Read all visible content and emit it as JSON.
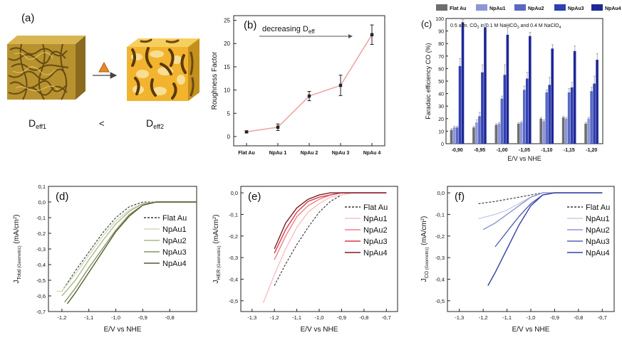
{
  "colors": {
    "flat": "#6e6e6e",
    "np1": "#8c96d8",
    "np2": "#5a68c4",
    "np3": "#2f3fb0",
    "np4": "#1f2796",
    "rough_line": "#f0a0a0",
    "total_flat": "#333333",
    "total_np": [
      "#cfdcb8",
      "#a9ba8a",
      "#86975f",
      "#545c30"
    ],
    "her_np": [
      "#f6c0c4",
      "#ee7e86",
      "#d83a48",
      "#7a1f26"
    ],
    "co_np": [
      "#c7cce8",
      "#8c96d0",
      "#5563b4",
      "#3443a0"
    ],
    "block_gold": "#c9a23a",
    "block_bright": "#f5c043"
  },
  "panel_a": {
    "label": "(a)",
    "d_left": "D",
    "d_left_sub": "eff1",
    "compare": "<",
    "d_right": "D",
    "d_right_sub": "eff2"
  },
  "chart_data": [
    {
      "id": "b",
      "type": "line",
      "panel_label": "(b)",
      "annotation": "decreasing D",
      "annotation_sub": "eff",
      "categories": [
        "Flat  Au",
        "NpAu 1",
        "NpAu 2",
        "NpAu 3",
        "NpAu 4"
      ],
      "values": [
        1.0,
        2.0,
        8.7,
        11.0,
        21.9
      ],
      "errors": [
        0.2,
        0.7,
        1.0,
        2.2,
        2.1
      ],
      "ylabel": "Roughness Factor",
      "ylim": [
        -2,
        26
      ],
      "yticks": [
        0,
        5,
        10,
        15,
        20,
        25
      ]
    },
    {
      "id": "c",
      "type": "bar",
      "panel_label": "(c)",
      "legend": [
        "Flat Au",
        "NpAu1",
        "NpAu2",
        "NpAu3",
        "NpAu4"
      ],
      "note": "0.5 atm. CO",
      "note_sub1": "2",
      "note_mid": " in 0.1 M NaHCO",
      "note_sub2": "3",
      "note_end": " and 0.4 M NaClO",
      "note_sub3": "4",
      "categories": [
        "-0,90",
        "-0,95",
        "-1,00",
        "-1,05",
        "-1,10",
        "-1,15",
        "-1,20"
      ],
      "series": [
        {
          "name": "Flat Au",
          "values": [
            11,
            13,
            15,
            16,
            20,
            21,
            16
          ]
        },
        {
          "name": "NpAu1",
          "values": [
            13,
            17,
            16,
            17,
            18,
            20,
            20
          ]
        },
        {
          "name": "NpAu2",
          "values": [
            13,
            22,
            36,
            43,
            41,
            41,
            42
          ]
        },
        {
          "name": "NpAu3",
          "values": [
            62,
            57,
            55,
            52,
            47,
            45,
            48
          ]
        },
        {
          "name": "NpAu4",
          "values": [
            97,
            93,
            87,
            86,
            76,
            74,
            67
          ]
        }
      ],
      "errors": [
        [
          1,
          1,
          1,
          1,
          1,
          1,
          1
        ],
        [
          1,
          2,
          1,
          1,
          1,
          1,
          1
        ],
        [
          1,
          3,
          2,
          3,
          2,
          3,
          3
        ],
        [
          6,
          6,
          8,
          5,
          6,
          4,
          6
        ],
        [
          2,
          3,
          6,
          3,
          3,
          4,
          5
        ]
      ],
      "xlabel": "E/V vs NHE",
      "ylabel": "Faradaic efficiency CO (%)",
      "ylim": [
        0,
        100
      ],
      "yticks": [
        0,
        10,
        20,
        30,
        40,
        50,
        60,
        70,
        80,
        90,
        100
      ]
    },
    {
      "id": "d",
      "type": "line",
      "panel_label": "(d)",
      "ylabel_main": "J",
      "ylabel_sub": "Total",
      "ylabel_small": " (Geometric)",
      "ylabel_unit": " (mA/cm",
      "ylabel_sup": "2",
      "ylabel_close": ")",
      "xlabel": "E/V vs NHE",
      "xlim": [
        -1.25,
        -0.7
      ],
      "ylim": [
        -0.7,
        0.1
      ],
      "xticks": [
        -1.2,
        -1.1,
        -1.0,
        -0.9,
        -0.8
      ],
      "xticklabels": [
        "-1,2",
        "-1,1",
        "-1,0",
        "-0,9",
        "-0,8"
      ],
      "yticks": [
        0.1,
        0.0,
        -0.1,
        -0.2,
        -0.3,
        -0.4,
        -0.5,
        -0.6,
        -0.7
      ],
      "yticklabels": [
        "0,1",
        "0,0",
        "-0,1",
        "-0,2",
        "-0,3",
        "-0,4",
        "-0,5",
        "-0,6",
        "-0,7"
      ],
      "series": [
        {
          "name": "Flat Au",
          "dashed": true,
          "x": [
            -1.2,
            -1.15,
            -1.1,
            -1.05,
            -1.0,
            -0.95,
            -0.9,
            -0.85,
            -0.8,
            -0.7
          ],
          "y": [
            -0.57,
            -0.44,
            -0.32,
            -0.2,
            -0.1,
            -0.03,
            0.0,
            0.0,
            0.0,
            0.0
          ]
        },
        {
          "name": "NpAu1",
          "x": [
            -1.22,
            -1.2,
            -1.15,
            -1.1,
            -1.05,
            -1.0,
            -0.95,
            -0.9,
            -0.85,
            -0.8,
            -0.7
          ],
          "y": [
            -0.57,
            -0.57,
            -0.46,
            -0.34,
            -0.22,
            -0.12,
            -0.05,
            -0.01,
            0.0,
            0.0,
            0.0
          ]
        },
        {
          "name": "NpAu2",
          "x": [
            -1.2,
            -1.15,
            -1.1,
            -1.05,
            -1.0,
            -0.95,
            -0.9,
            -0.85,
            -0.8,
            -0.7
          ],
          "y": [
            -0.6,
            -0.5,
            -0.37,
            -0.25,
            -0.14,
            -0.06,
            -0.01,
            0.0,
            0.0,
            0.0
          ]
        },
        {
          "name": "NpAu3",
          "x": [
            -1.19,
            -1.15,
            -1.1,
            -1.05,
            -1.0,
            -0.95,
            -0.9,
            -0.85,
            -0.8,
            -0.7
          ],
          "y": [
            -0.64,
            -0.55,
            -0.42,
            -0.3,
            -0.18,
            -0.08,
            -0.02,
            0.0,
            0.0,
            0.0
          ]
        },
        {
          "name": "NpAu4",
          "x": [
            -1.18,
            -1.15,
            -1.1,
            -1.05,
            -1.0,
            -0.95,
            -0.9,
            -0.85,
            -0.8,
            -0.7
          ],
          "y": [
            -0.65,
            -0.58,
            -0.45,
            -0.32,
            -0.19,
            -0.09,
            -0.02,
            0.0,
            0.0,
            0.0
          ]
        }
      ]
    },
    {
      "id": "e",
      "type": "line",
      "panel_label": "(e)",
      "ylabel_main": "J",
      "ylabel_sub": "HER",
      "ylabel_small": " (Geometric)",
      "ylabel_unit": " (mA/cm",
      "ylabel_sup": "2",
      "ylabel_close": ")",
      "xlabel": "E/V vs NHE",
      "xlim": [
        -1.35,
        -0.65
      ],
      "ylim": [
        -0.55,
        0.03
      ],
      "xticks": [
        -1.3,
        -1.2,
        -1.1,
        -1.0,
        -0.9,
        -0.8,
        -0.7
      ],
      "xticklabels": [
        "-1,3",
        "-1,2",
        "-1,1",
        "-1,0",
        "-0,9",
        "-0,8",
        "-0,7"
      ],
      "yticks": [
        0.0,
        -0.1,
        -0.2,
        -0.3,
        -0.4,
        -0.5
      ],
      "yticklabels": [
        "0,0",
        "-0,1",
        "-0,2",
        "-0,3",
        "-0,4",
        "-0,5"
      ],
      "series": [
        {
          "name": "Flat Au",
          "dashed": true,
          "x": [
            -1.2,
            -1.15,
            -1.1,
            -1.05,
            -1.0,
            -0.95,
            -0.9,
            -0.85,
            -0.8,
            -0.7
          ],
          "y": [
            -0.43,
            -0.33,
            -0.24,
            -0.16,
            -0.09,
            -0.04,
            -0.01,
            0.0,
            0.0,
            0.0
          ]
        },
        {
          "name": "NpAu1",
          "x": [
            -1.25,
            -1.2,
            -1.15,
            -1.1,
            -1.05,
            -1.0,
            -0.95,
            -0.9,
            -0.85,
            -0.8,
            -0.7
          ],
          "y": [
            -0.51,
            -0.38,
            -0.26,
            -0.16,
            -0.09,
            -0.05,
            -0.02,
            -0.01,
            0.0,
            0.0,
            0.0
          ]
        },
        {
          "name": "NpAu2",
          "x": [
            -1.2,
            -1.15,
            -1.1,
            -1.05,
            -1.0,
            -0.95,
            -0.9,
            -0.85,
            -0.8,
            -0.7
          ],
          "y": [
            -0.31,
            -0.2,
            -0.11,
            -0.06,
            -0.03,
            -0.01,
            0.0,
            0.0,
            0.0,
            0.0
          ]
        },
        {
          "name": "NpAu3",
          "x": [
            -1.2,
            -1.15,
            -1.1,
            -1.05,
            -1.0,
            -0.95,
            -0.9,
            -0.85,
            -0.8,
            -0.7
          ],
          "y": [
            -0.28,
            -0.17,
            -0.09,
            -0.04,
            -0.02,
            -0.01,
            0.0,
            0.0,
            0.0,
            0.0
          ]
        },
        {
          "name": "NpAu4",
          "x": [
            -1.2,
            -1.15,
            -1.1,
            -1.05,
            -1.0,
            -0.95,
            -0.9,
            -0.85,
            -0.8,
            -0.7
          ],
          "y": [
            -0.26,
            -0.14,
            -0.07,
            -0.03,
            -0.01,
            0.0,
            0.0,
            0.0,
            0.0,
            0.0
          ]
        }
      ]
    },
    {
      "id": "f",
      "type": "line",
      "panel_label": "(f)",
      "ylabel_main": "J",
      "ylabel_sub": "CO",
      "ylabel_small": " (Geometric)",
      "ylabel_unit": " (mA/cm",
      "ylabel_sup": "2",
      "ylabel_close": ")",
      "xlabel": "E/V vs NHE",
      "xlim": [
        -1.35,
        -0.65
      ],
      "ylim": [
        -0.55,
        0.03
      ],
      "xticks": [
        -1.3,
        -1.2,
        -1.1,
        -1.0,
        -0.9,
        -0.8,
        -0.7
      ],
      "xticklabels": [
        "-1,3",
        "-1,2",
        "-1,1",
        "-1,0",
        "-0,9",
        "-0,8",
        "-0,7"
      ],
      "yticks": [
        0.0,
        -0.1,
        -0.2,
        -0.3,
        -0.4,
        -0.5
      ],
      "yticklabels": [
        "0,0",
        "-0,1",
        "-0,2",
        "-0,3",
        "-0,4",
        "-0,5"
      ],
      "series": [
        {
          "name": "Flat Au",
          "dashed": true,
          "x": [
            -1.22,
            -1.15,
            -1.1,
            -1.05,
            -1.0,
            -0.95,
            -0.9,
            -0.85,
            -0.7
          ],
          "y": [
            -0.05,
            -0.04,
            -0.03,
            -0.02,
            -0.01,
            0.0,
            0.0,
            0.0,
            0.0
          ]
        },
        {
          "name": "NpAu1",
          "x": [
            -1.22,
            -1.15,
            -1.1,
            -1.05,
            -1.0,
            -0.95,
            -0.9,
            -0.85,
            -0.7
          ],
          "y": [
            -0.12,
            -0.1,
            -0.08,
            -0.05,
            -0.02,
            0.0,
            0.0,
            0.0,
            0.0
          ]
        },
        {
          "name": "NpAu2",
          "x": [
            -1.2,
            -1.15,
            -1.1,
            -1.05,
            -1.0,
            -0.95,
            -0.9,
            -0.85,
            -0.7
          ],
          "y": [
            -0.17,
            -0.14,
            -0.1,
            -0.06,
            -0.02,
            0.0,
            0.0,
            0.0,
            0.0
          ]
        },
        {
          "name": "NpAu3",
          "x": [
            -1.15,
            -1.1,
            -1.05,
            -1.0,
            -0.95,
            -0.9,
            -0.85,
            -0.7
          ],
          "y": [
            -0.25,
            -0.18,
            -0.11,
            -0.05,
            -0.01,
            0.0,
            0.0,
            0.0
          ]
        },
        {
          "name": "NpAu4",
          "x": [
            -1.18,
            -1.15,
            -1.1,
            -1.05,
            -1.0,
            -0.95,
            -0.9,
            -0.85,
            -0.7
          ],
          "y": [
            -0.43,
            -0.37,
            -0.26,
            -0.15,
            -0.06,
            -0.01,
            0.0,
            0.0,
            0.0
          ]
        }
      ]
    }
  ]
}
